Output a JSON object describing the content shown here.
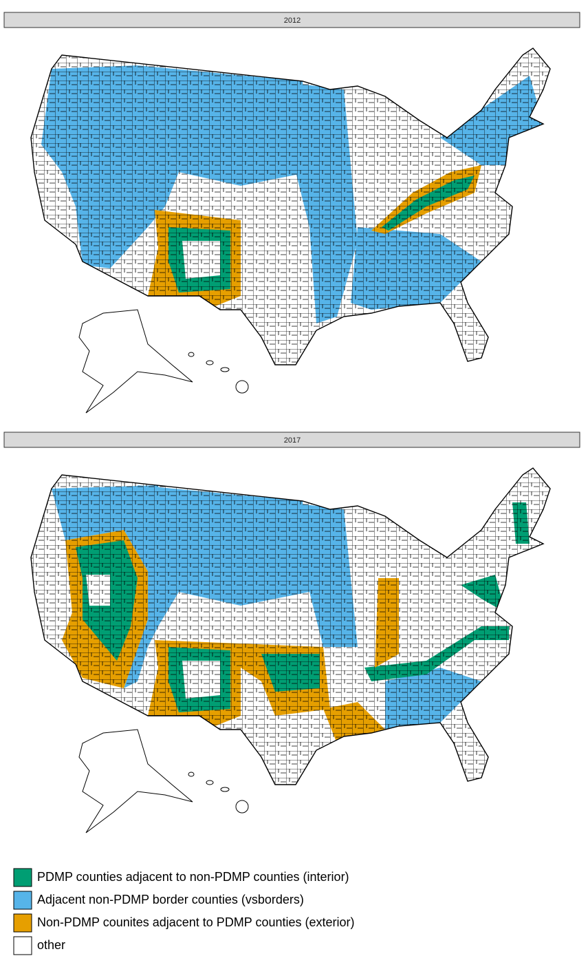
{
  "panels": [
    {
      "title": "2012"
    },
    {
      "title": "2017"
    }
  ],
  "legend": {
    "items": [
      {
        "label": "PDMP counties adjacent to non-PDMP counties (interior)",
        "color": "#009e73"
      },
      {
        "label": "Adjacent non-PDMP border counties (vsborders)",
        "color": "#56b4e9"
      },
      {
        "label": "Non-PDMP counites adjacent to PDMP counties (exterior)",
        "color": "#e69f00"
      },
      {
        "label": "other",
        "color": "#ffffff"
      }
    ]
  }
}
